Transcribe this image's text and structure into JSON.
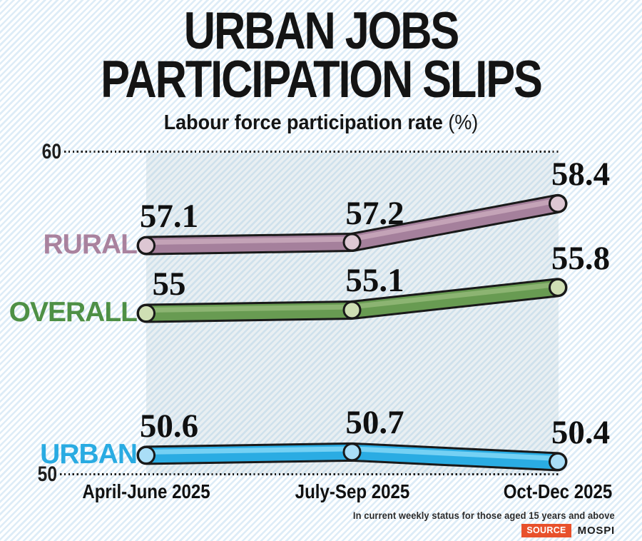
{
  "title": {
    "line1": "URBAN JOBS",
    "line2": "PARTICIPATION SLIPS"
  },
  "subtitle": {
    "main": "Labour force participation rate ",
    "unit": "(%)"
  },
  "axis": {
    "y_top": "60",
    "y_bottom": "50"
  },
  "footer": {
    "note": "In current weekly status for those aged 15 years and above",
    "source_label": "SOURCE",
    "source_value": "MOSPI",
    "source_badge_color": "#e8512c"
  },
  "chart_data": {
    "type": "line",
    "title": "URBAN JOBS PARTICIPATION SLIPS",
    "subtitle": "Labour force participation rate (%)",
    "categories": [
      "April-June 2025",
      "July-Sep 2025",
      "Oct-Dec 2025"
    ],
    "series": [
      {
        "name": "RURAL",
        "values": [
          57.1,
          57.2,
          58.4
        ],
        "color": "#a5809c",
        "highlight": "#c9a9bc",
        "marker_fill": "#ddc7d3",
        "label_color": "#a9829e"
      },
      {
        "name": "OVERALL",
        "values": [
          55,
          55.1,
          55.8
        ],
        "color": "#689b52",
        "highlight": "#93b878",
        "marker_fill": "#cfdfb4",
        "label_color": "#4e9045"
      },
      {
        "name": "URBAN",
        "values": [
          50.6,
          50.7,
          50.4
        ],
        "color": "#2aace3",
        "highlight": "#83d7f7",
        "marker_fill": "#aadef7",
        "label_color": "#29abe2"
      }
    ],
    "xlabel": "",
    "ylabel": "",
    "ylim": [
      50,
      60
    ],
    "yticks": [
      50,
      60
    ],
    "grid": "dotted horizontal lines at y=50 and y=60",
    "legend_position": "series names left of first data points",
    "outline_color": "#191919"
  }
}
